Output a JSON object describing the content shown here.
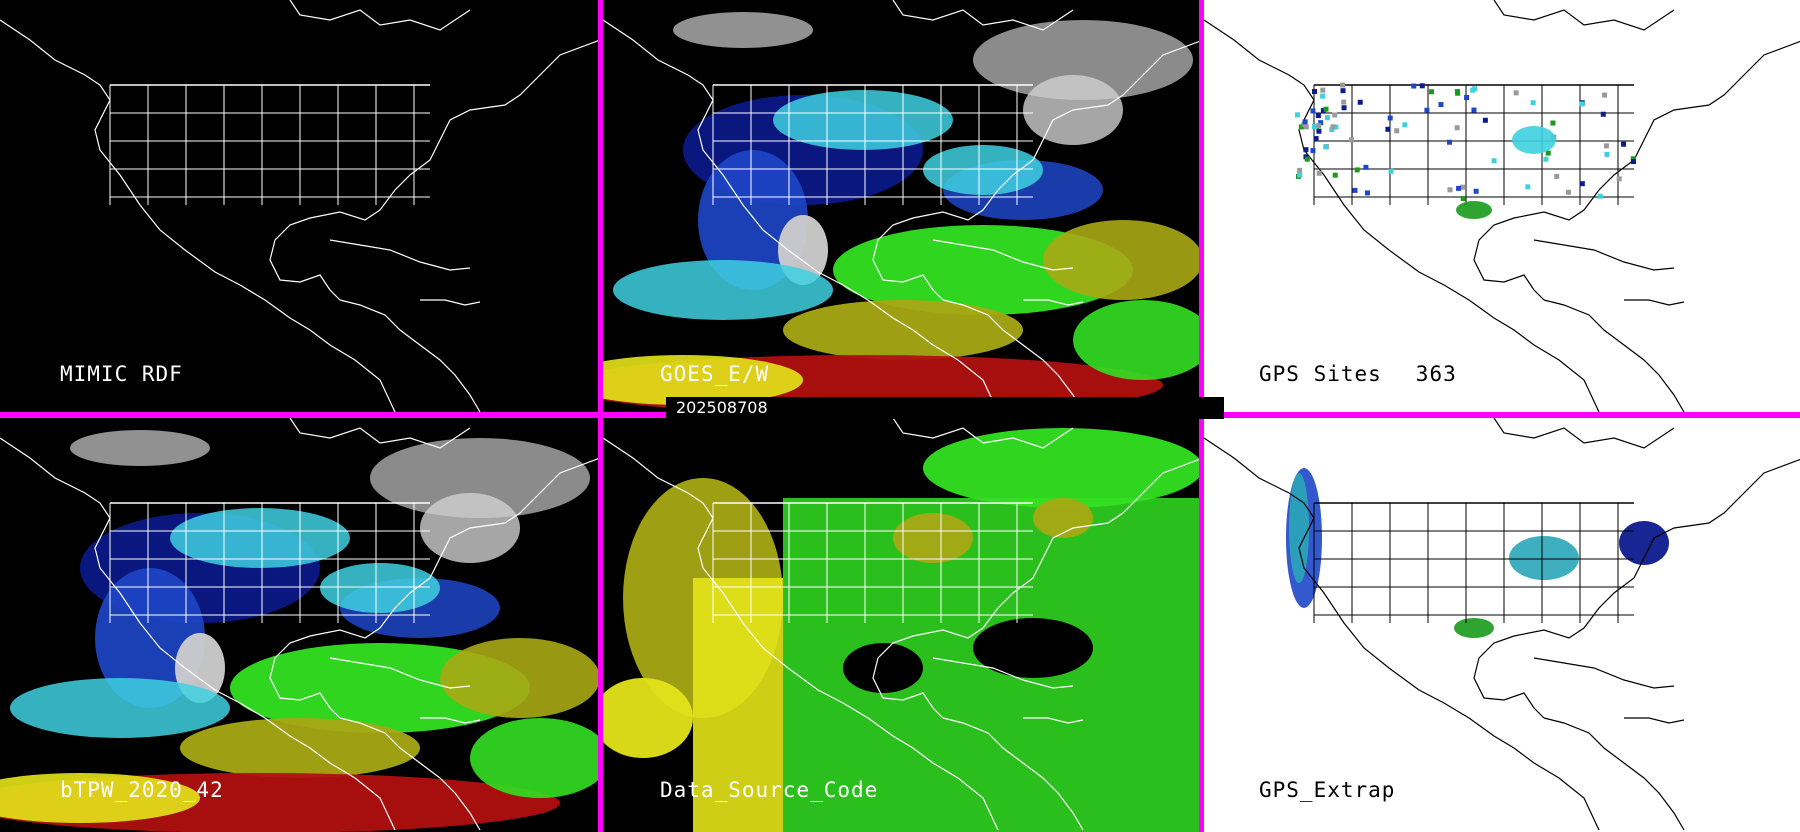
{
  "timestamp": "202508708",
  "colors": {
    "frame": "#ff00ff",
    "dark_bg": "#000000",
    "light_bg": "#ffffff"
  },
  "panels": [
    {
      "id": "mimic-rdf",
      "label": "MIMIC RDF",
      "bg": "dark",
      "product": "outline-only"
    },
    {
      "id": "goes-ew",
      "label": "GOES_E/W",
      "bg": "dark",
      "product": "tpw"
    },
    {
      "id": "gps-sites",
      "label": "GPS Sites",
      "count": "363",
      "bg": "light",
      "product": "sites"
    },
    {
      "id": "btpw",
      "label": "bTPW_2020_42",
      "bg": "dark",
      "product": "tpw"
    },
    {
      "id": "data-source-code",
      "label": "Data_Source_Code",
      "bg": "dark",
      "product": "source"
    },
    {
      "id": "gps-extrap",
      "label": "GPS_Extrap",
      "bg": "light",
      "product": "extrap"
    }
  ],
  "palette": {
    "gray": "#9a9a9a",
    "light_gray": "#cfcfcf",
    "navy": "#0b1a8c",
    "blue": "#1e46c8",
    "cyan": "#3fd0e0",
    "teal": "#2aa6b8",
    "green": "#33e022",
    "dark_green": "#1a9a1a",
    "olive": "#a8a814",
    "yellow": "#e4e41a",
    "red": "#b01010"
  }
}
